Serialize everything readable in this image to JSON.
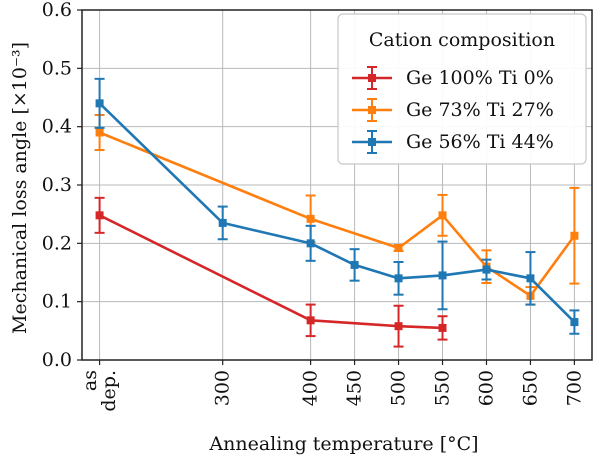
{
  "chart_data": {
    "type": "line",
    "title": "",
    "xlabel": "Annealing temperature [°C]",
    "ylabel": "Mechanical loss angle [×10⁻³]",
    "ylim": [
      0,
      0.6
    ],
    "yticks": [
      "0.0",
      "0.1",
      "0.2",
      "0.3",
      "0.4",
      "0.5",
      "0.6"
    ],
    "x_categories": [
      {
        "key": "as-dep",
        "lines": [
          "as",
          "dep."
        ],
        "pos": 160
      },
      {
        "key": "300",
        "lines": [
          "300"
        ],
        "pos": 300
      },
      {
        "key": "400",
        "lines": [
          "400"
        ],
        "pos": 400
      },
      {
        "key": "450",
        "lines": [
          "450"
        ],
        "pos": 450
      },
      {
        "key": "500",
        "lines": [
          "500"
        ],
        "pos": 500
      },
      {
        "key": "550",
        "lines": [
          "550"
        ],
        "pos": 550
      },
      {
        "key": "600",
        "lines": [
          "600"
        ],
        "pos": 600
      },
      {
        "key": "650",
        "lines": [
          "650"
        ],
        "pos": 650
      },
      {
        "key": "700",
        "lines": [
          "700"
        ],
        "pos": 700
      }
    ],
    "legend": {
      "title": "Cation composition",
      "placement": "top-right"
    },
    "series": [
      {
        "name": "Ge 100% Ti 0%",
        "color": "#d62728",
        "points": [
          {
            "x": "as-dep",
            "y": 0.248,
            "err": 0.03
          },
          {
            "x": "400",
            "y": 0.068,
            "err": 0.027
          },
          {
            "x": "500",
            "y": 0.058,
            "err": 0.035
          },
          {
            "x": "550",
            "y": 0.055,
            "err": 0.02
          }
        ]
      },
      {
        "name": "Ge 73% Ti 27%",
        "color": "#ff7f0e",
        "points": [
          {
            "x": "as-dep",
            "y": 0.39,
            "err": 0.03
          },
          {
            "x": "400",
            "y": 0.242,
            "err": 0.04
          },
          {
            "x": "500",
            "y": 0.192,
            "err": 0.005
          },
          {
            "x": "550",
            "y": 0.248,
            "err": 0.035
          },
          {
            "x": "600",
            "y": 0.16,
            "err": 0.028
          },
          {
            "x": "650",
            "y": 0.11,
            "err": 0.015
          },
          {
            "x": "700",
            "y": 0.213,
            "err": 0.082
          }
        ]
      },
      {
        "name": "Ge 56% Ti 44%",
        "color": "#1f77b4",
        "points": [
          {
            "x": "as-dep",
            "y": 0.44,
            "err": 0.042
          },
          {
            "x": "300",
            "y": 0.235,
            "err": 0.028
          },
          {
            "x": "400",
            "y": 0.2,
            "err": 0.03
          },
          {
            "x": "450",
            "y": 0.163,
            "err": 0.027
          },
          {
            "x": "500",
            "y": 0.14,
            "err": 0.028
          },
          {
            "x": "550",
            "y": 0.145,
            "err": 0.058
          },
          {
            "x": "600",
            "y": 0.155,
            "err": 0.017
          },
          {
            "x": "650",
            "y": 0.14,
            "err": 0.045
          },
          {
            "x": "700",
            "y": 0.065,
            "err": 0.02
          }
        ]
      }
    ]
  }
}
